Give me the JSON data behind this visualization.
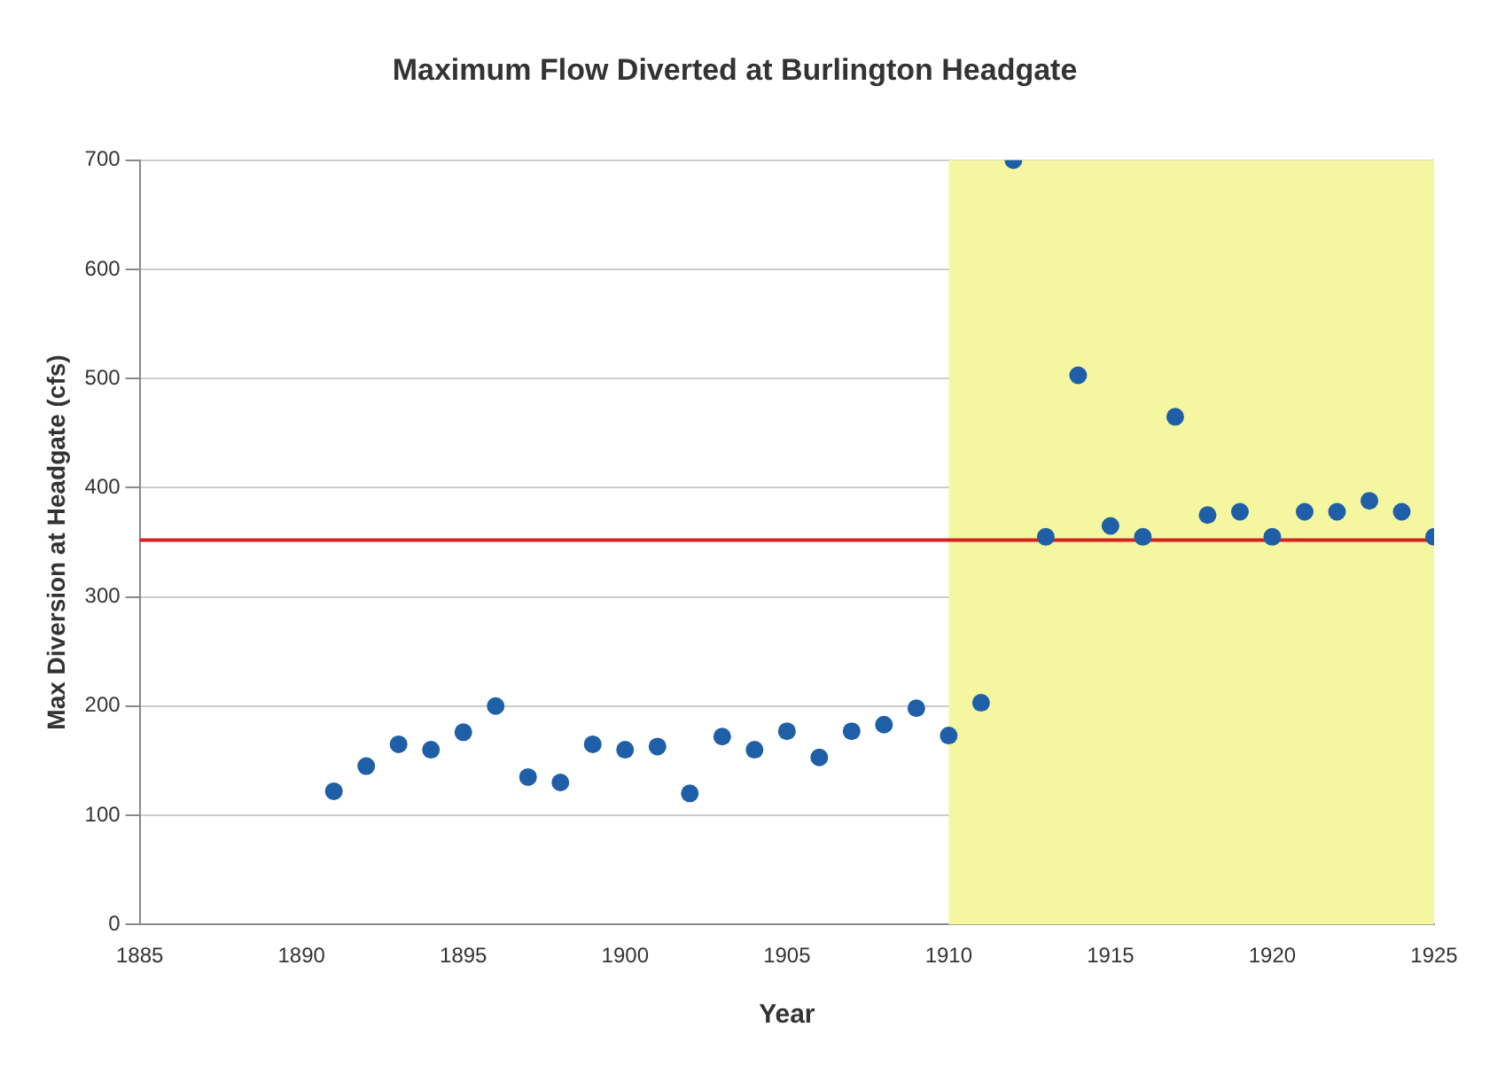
{
  "chart_data": {
    "type": "scatter",
    "title": "Maximum Flow Diverted at Burlington Headgate",
    "xlabel": "Year",
    "ylabel": "Max Diversion at Headgate (cfs)",
    "x": [
      1891,
      1892,
      1893,
      1894,
      1895,
      1896,
      1897,
      1898,
      1899,
      1900,
      1901,
      1902,
      1903,
      1904,
      1905,
      1906,
      1907,
      1908,
      1909,
      1910,
      1911,
      1912,
      1913,
      1914,
      1915,
      1916,
      1917,
      1918,
      1919,
      1920,
      1921,
      1922,
      1923,
      1924,
      1925
    ],
    "series": [
      {
        "color": "#1f5fa8",
        "values": [
          122,
          145,
          165,
          160,
          176,
          200,
          135,
          130,
          165,
          160,
          163,
          120,
          172,
          160,
          177,
          153,
          177,
          183,
          198,
          173,
          203,
          700,
          355,
          503,
          365,
          355,
          465,
          375,
          378,
          355,
          378,
          378,
          388,
          378,
          355
        ]
      }
    ],
    "xlim": [
      1885,
      1925
    ],
    "xticks": [
      1885,
      1890,
      1895,
      1900,
      1905,
      1910,
      1915,
      1920,
      1925
    ],
    "ylim": [
      0,
      700
    ],
    "yticks": [
      0,
      100,
      200,
      300,
      400,
      500,
      600,
      700
    ],
    "grid": "y",
    "legend": false,
    "marker": "circle",
    "ref_lines": [
      {
        "axis": "y",
        "value": 352,
        "color": "#d62020"
      }
    ],
    "bands": [
      {
        "axis": "x",
        "from": 1910,
        "to": 1925,
        "color": "#f5f7a0"
      }
    ]
  }
}
